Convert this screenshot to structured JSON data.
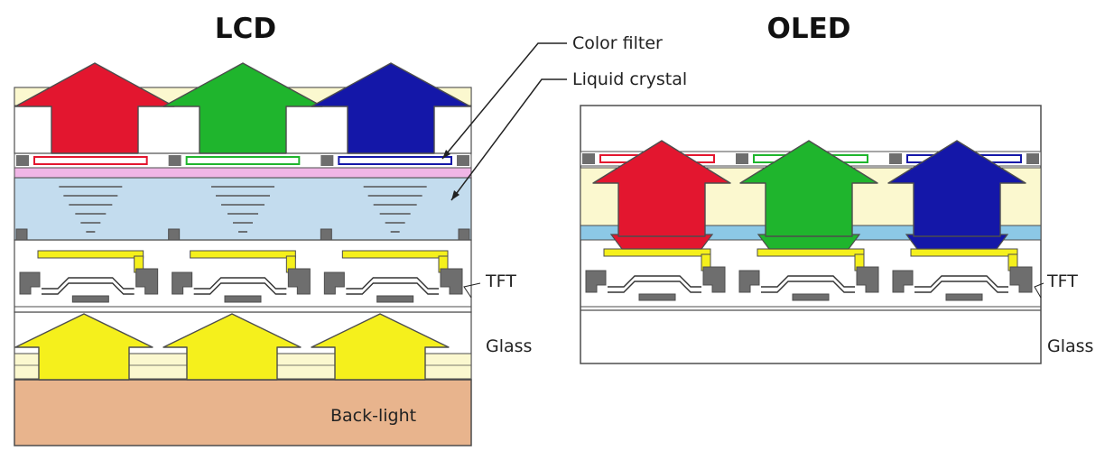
{
  "titles": {
    "lcd": "LCD",
    "oled": "OLED"
  },
  "labels": {
    "color_filter": "Color filter",
    "liquid_crystal": "Liquid crystal",
    "lcd_tft": "TFT",
    "lcd_glass": "Glass",
    "backlight": "Back-light",
    "oled_tft": "TFT",
    "oled_glass": "Glass"
  },
  "colors": {
    "red": "#e3162f",
    "green": "#1fb52d",
    "blue": "#1417a8",
    "yellow": "#f5f01c",
    "pale_yellow": "#fbf8cf",
    "pink": "#f0b6e6",
    "liquid_crystal": "#c3dcee",
    "backlight": "#e8b48d",
    "gray": "#6e6e6e",
    "light_blue": "#8cc8e6",
    "outline": "#4d4d4d"
  }
}
